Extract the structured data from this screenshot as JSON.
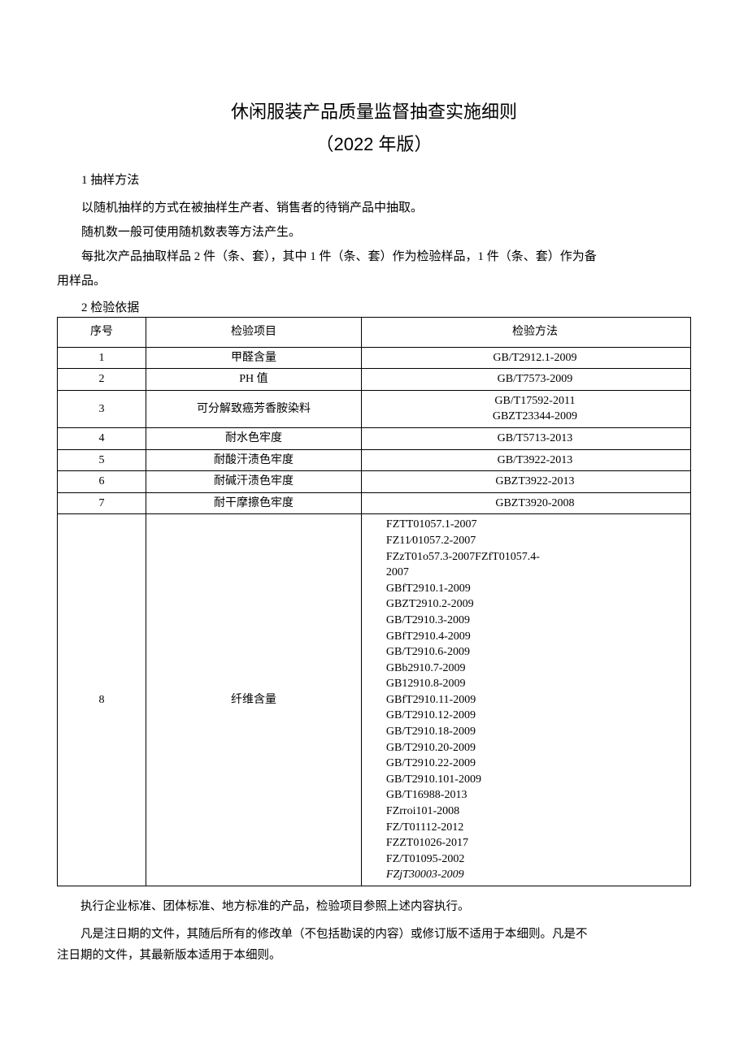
{
  "title": "休闲服装产品质量监督抽查实施细则",
  "subtitle": "（2022 年版）",
  "section1_heading": "1 抽样方法",
  "section1_p1": "以随机抽样的方式在被抽样生产者、销售者的待销产品中抽取。",
  "section1_p2": "随机数一般可使用随机数表等方法产生。",
  "section1_p3": "每批次产品抽取样品 2 件（条、套），其中 1 件（条、套）作为检验样品，1 件（条、套）作为备",
  "section1_p3b": "用样品。",
  "section2_heading": "2 检验依据",
  "table": {
    "headers": [
      "序号",
      "检验项目",
      "检验方法"
    ],
    "rows": [
      {
        "idx": "1",
        "item": "甲醛含量",
        "method": "GB/T2912.1-2009"
      },
      {
        "idx": "2",
        "item": "PH 值",
        "method": "GB/T7573-2009"
      },
      {
        "idx": "3",
        "item": "可分解致癌芳香胺染料",
        "method": "GB/T17592-2011\nGBZT23344-2009"
      },
      {
        "idx": "4",
        "item": "耐水色牢度",
        "method": "GB/T5713-2013"
      },
      {
        "idx": "5",
        "item": "耐酸汗渍色牢度",
        "method": "GB/T3922-2013"
      },
      {
        "idx": "6",
        "item": "耐碱汗渍色牢度",
        "method": "GBZT3922-2013"
      },
      {
        "idx": "7",
        "item": "耐干摩擦色牢度",
        "method": "GBZT3920-2008"
      },
      {
        "idx": "8",
        "item": "纤维含量",
        "method_left": true,
        "method_lines": [
          "FZTT01057.1-2007",
          "FZ11∕01057.2-2007",
          "FZzT01o57.3-2007FZfT01057.4-",
          "2007",
          "GBfT2910.1-2009",
          "GBZT2910.2-2009",
          "GB/T2910.3-2009",
          "GBfT2910.4-2009",
          "GB/T2910.6-2009",
          "GBb2910.7-2009",
          "GB12910.8-2009",
          "GBfT2910.11-2009",
          "GB/T2910.12-2009",
          "GB/T2910.18-2009",
          "GB/T2910.20-2009",
          "GB/T2910.22-2009",
          "GB/T2910.101-2009",
          " GB/T16988-2013",
          "FZrroi101-2008",
          "FZ/T01112-2012",
          "FZZT01026-2017",
          "FZ/T01095-2002"
        ],
        "method_last_italic": "FZjT30003-2009"
      }
    ]
  },
  "footnote1": "执行企业标准、团体标准、地方标准的产品，检验项目参照上述内容执行。",
  "footnote2a": "凡是注日期的文件，其随后所有的修改单（不包括勘误的内容）或修订版不适用于本细则。凡是不",
  "footnote2b": "注日期的文件，其最新版本适用于本细则。"
}
